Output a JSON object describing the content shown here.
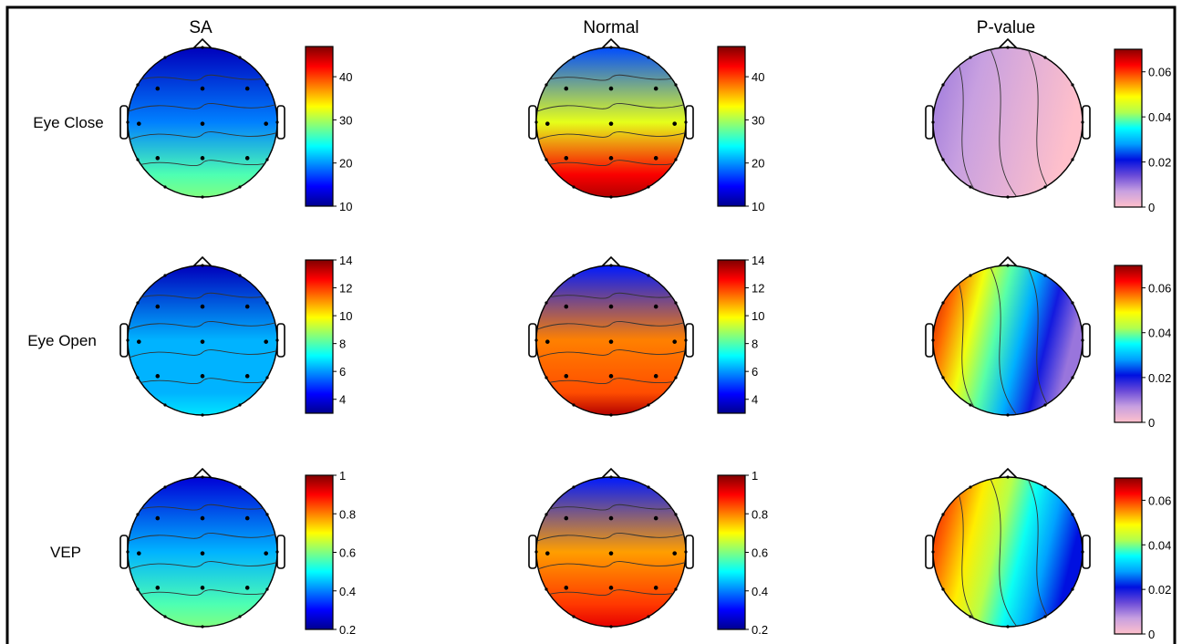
{
  "column_titles": [
    "SA",
    "Normal",
    "P-value"
  ],
  "row_labels": [
    "Eye Close",
    "Eye Open",
    "VEP"
  ],
  "colormaps": {
    "jet": [
      "#00008f",
      "#0000ff",
      "#0080ff",
      "#00ffff",
      "#80ff80",
      "#ffff00",
      "#ff8000",
      "#ff0000",
      "#800000"
    ],
    "pvalue": [
      "#ffc0cb",
      "#c8a0e0",
      "#6a4ad8",
      "#0010e0",
      "#00a0ff",
      "#00ffff",
      "#b0ff50",
      "#ffff00",
      "#ff8000",
      "#ff0000",
      "#8b0000"
    ]
  },
  "colorbars": [
    {
      "row": "Eye Close",
      "shared_by": [
        "SA",
        "Normal"
      ],
      "ticks": [
        "40",
        "30",
        "20",
        "10"
      ]
    },
    {
      "row": "Eye Close",
      "shared_by": [
        "P-value"
      ],
      "ticks": [
        "0.06",
        "0.04",
        "0.02",
        "0"
      ]
    },
    {
      "row": "Eye Open",
      "shared_by": [
        "SA",
        "Normal"
      ],
      "ticks": [
        "14",
        "12",
        "10",
        "8",
        "6",
        "4"
      ]
    },
    {
      "row": "Eye Open",
      "shared_by": [
        "P-value"
      ],
      "ticks": [
        "0.06",
        "0.04",
        "0.02",
        "0"
      ]
    },
    {
      "row": "VEP",
      "shared_by": [
        "SA",
        "Normal"
      ],
      "ticks": [
        "1",
        "0.8",
        "0.6",
        "0.4",
        "0.2"
      ]
    },
    {
      "row": "VEP",
      "shared_by": [
        "P-value"
      ],
      "ticks": [
        "0.06",
        "0.04",
        "0.02",
        "0"
      ]
    }
  ],
  "maps": [
    {
      "row": "Eye Close",
      "column": "SA",
      "level_front": 0.05,
      "level_middle": 0.25,
      "level_back": 0.45,
      "back_peak_level": 0.5
    },
    {
      "row": "Eye Close",
      "column": "Normal",
      "level_front": 0.2,
      "level_middle": 0.6,
      "level_back": 0.88,
      "back_peak_level": 0.95
    },
    {
      "row": "Eye Close",
      "column": "P-value",
      "left_level": 0.15,
      "right_level": 0.0
    },
    {
      "row": "Eye Open",
      "column": "SA",
      "level_front": 0.05,
      "level_middle": 0.3,
      "level_back": 0.3,
      "back_peak_level": 0.35
    },
    {
      "row": "Eye Open",
      "column": "Normal",
      "level_front": 0.15,
      "level_middle": 0.75,
      "level_back": 0.8,
      "back_peak_level": 0.95
    },
    {
      "row": "Eye Open",
      "column": "P-value",
      "left_level": 0.95,
      "right_level": 0.15
    },
    {
      "row": "VEP",
      "column": "SA",
      "level_front": 0.08,
      "level_middle": 0.3,
      "level_back": 0.45,
      "back_peak_level": 0.5
    },
    {
      "row": "VEP",
      "column": "Normal",
      "level_front": 0.15,
      "level_middle": 0.72,
      "level_back": 0.82,
      "back_peak_level": 0.9
    },
    {
      "row": "VEP",
      "column": "P-value",
      "left_level": 0.92,
      "right_level": 0.3
    }
  ]
}
